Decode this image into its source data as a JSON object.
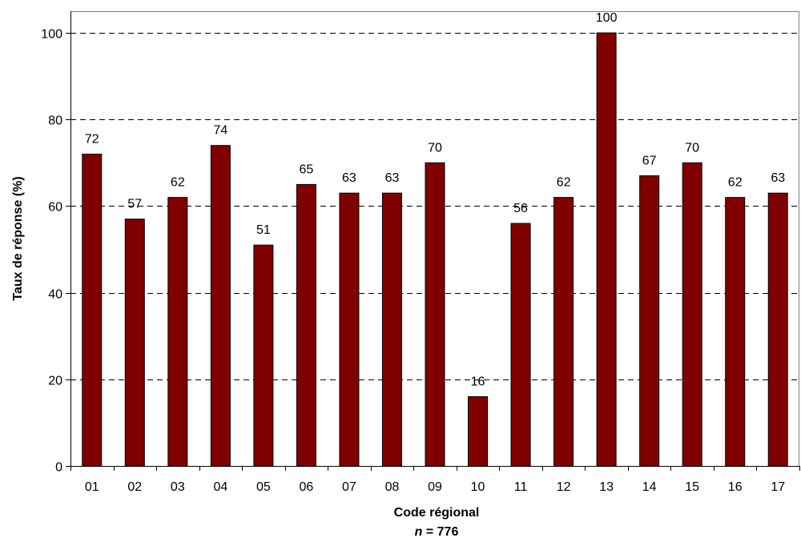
{
  "chart_data": {
    "type": "bar",
    "categories": [
      "01",
      "02",
      "03",
      "04",
      "05",
      "06",
      "07",
      "08",
      "09",
      "10",
      "11",
      "12",
      "13",
      "14",
      "15",
      "16",
      "17"
    ],
    "values": [
      72,
      57,
      62,
      74,
      51,
      65,
      63,
      63,
      70,
      16,
      56,
      62,
      100,
      67,
      70,
      62,
      63
    ],
    "data_labels": [
      "72",
      "57",
      "62",
      "74",
      "51",
      "65",
      "63",
      "63",
      "70",
      "16",
      "56",
      "62",
      "100",
      "67",
      "70",
      "62",
      "63"
    ],
    "xlabel": "Code régional",
    "n_prefix": "n",
    "n_value": " = 776",
    "ylabel": "Taux de réponse (%)",
    "ylim": [
      0,
      105
    ],
    "yticks": [
      0,
      20,
      40,
      60,
      80,
      100
    ],
    "ytick_labels": [
      "0",
      "20",
      "40",
      "60",
      "80",
      "100"
    ],
    "grid": "horizontal dashed",
    "legend": "none",
    "colors": {
      "bar": "#800000",
      "bar_stroke": "#000000",
      "grid": "#000000"
    }
  }
}
